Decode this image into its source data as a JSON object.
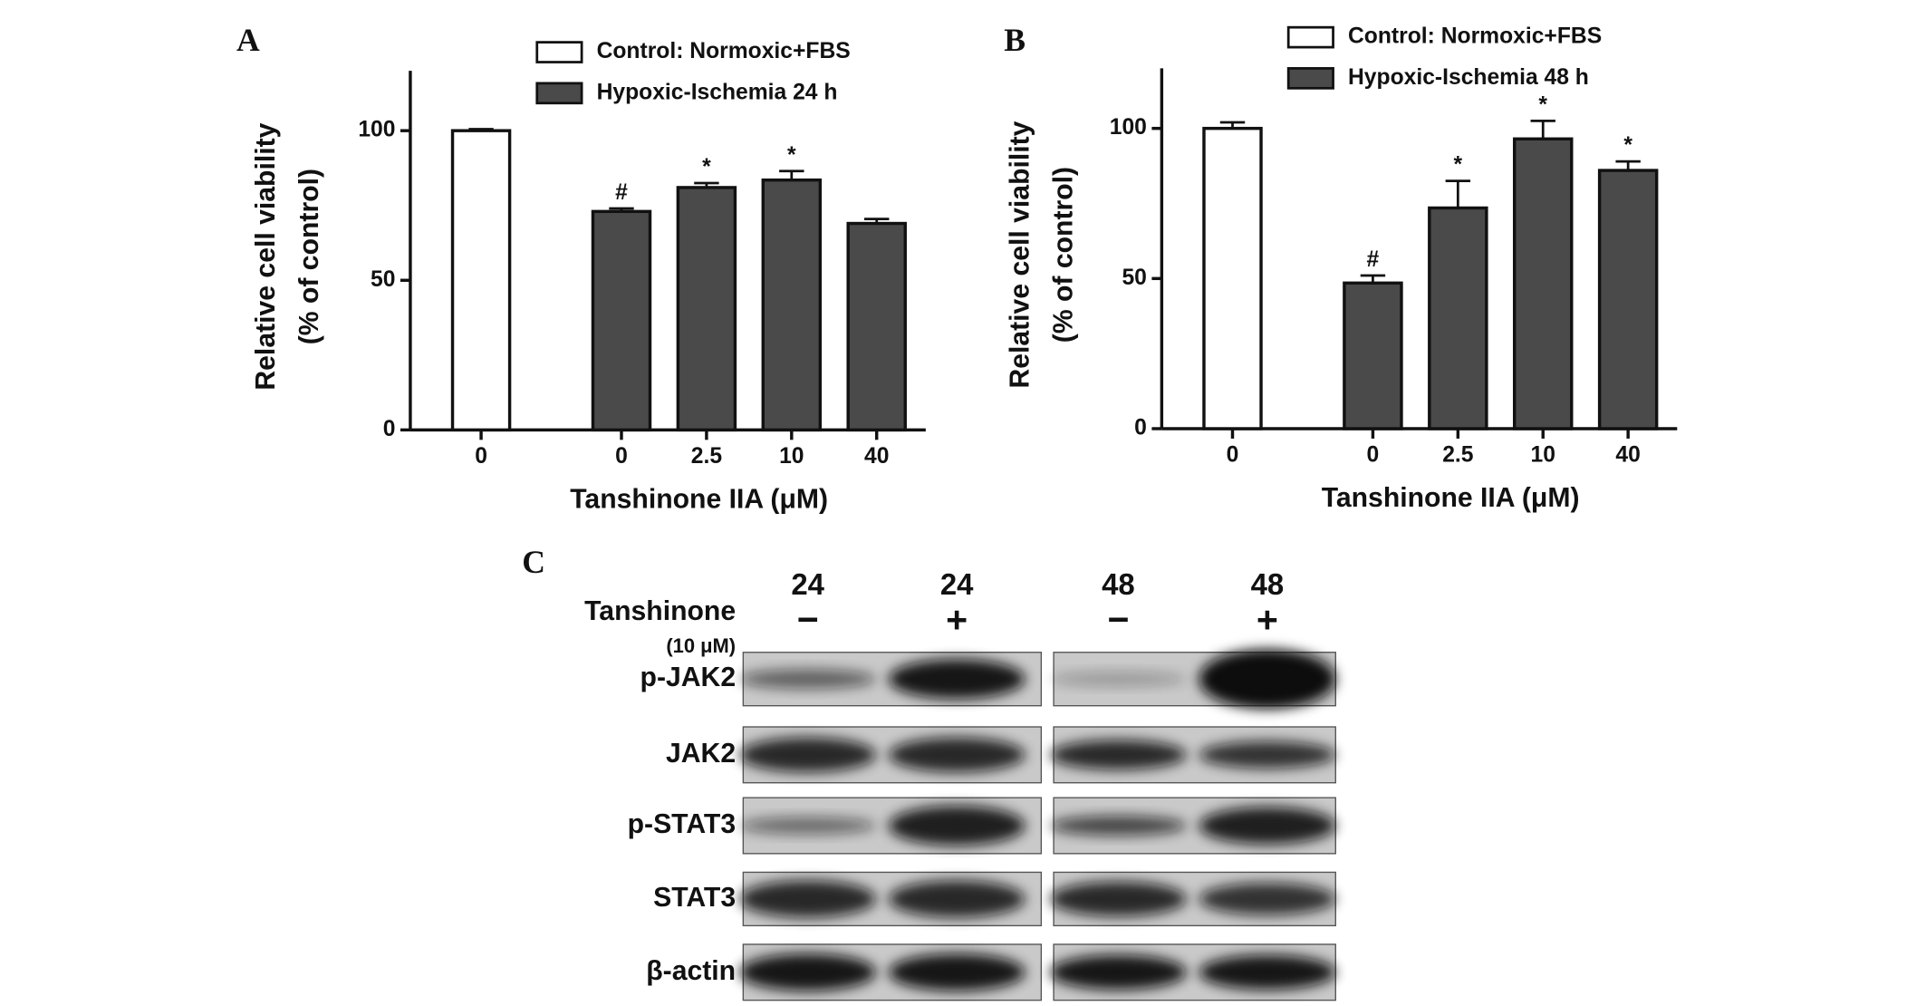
{
  "chart_data": [
    {
      "type": "bar",
      "panel_label": "A",
      "categories": [
        "0",
        "0",
        "2.5",
        "10",
        "40"
      ],
      "series": [
        {
          "name": "Control: Normoxic+FBS",
          "color": "#ffffff",
          "values": [
            100,
            null,
            null,
            null,
            null
          ],
          "errors": [
            0.5,
            null,
            null,
            null,
            null
          ]
        },
        {
          "name": "Hypoxic-Ischemia 24 h",
          "color": "#4a4a4a",
          "values": [
            null,
            73,
            81,
            83.5,
            69
          ],
          "errors": [
            null,
            1,
            1.5,
            3,
            1.5
          ]
        }
      ],
      "annotations": [
        null,
        "#",
        "*",
        "*",
        null
      ],
      "ylim": [
        0,
        120
      ],
      "yticks": [
        0,
        50,
        100
      ],
      "xlabel": "Tanshinone IIA (μM)",
      "ylabel": [
        "Relative cell viability",
        "(% of control)"
      ]
    },
    {
      "type": "bar",
      "panel_label": "B",
      "categories": [
        "0",
        "0",
        "2.5",
        "10",
        "40"
      ],
      "series": [
        {
          "name": "Control: Normoxic+FBS",
          "color": "#ffffff",
          "values": [
            100,
            null,
            null,
            null,
            null
          ],
          "errors": [
            2,
            null,
            null,
            null,
            null
          ]
        },
        {
          "name": "Hypoxic-Ischemia 48 h",
          "color": "#4a4a4a",
          "values": [
            null,
            48.5,
            73.5,
            96.5,
            86
          ],
          "errors": [
            null,
            2.5,
            9,
            6,
            3
          ]
        }
      ],
      "annotations": [
        null,
        "#",
        "*",
        "*",
        "*"
      ],
      "ylim": [
        0,
        120
      ],
      "yticks": [
        0,
        50,
        100
      ],
      "xlabel": "Tanshinone IIA (μM)",
      "ylabel": [
        "Relative cell viability",
        "(% of control)"
      ]
    }
  ],
  "blot": {
    "panel_label": "C",
    "times": [
      "24",
      "24",
      "48",
      "48"
    ],
    "signs": [
      "−",
      "+",
      "−",
      "+"
    ],
    "treatment": "Tanshinone",
    "dose": "(10 μM)",
    "rows": [
      "p-JAK2",
      "JAK2",
      "p-STAT3",
      "STAT3",
      "β-actin"
    ]
  }
}
